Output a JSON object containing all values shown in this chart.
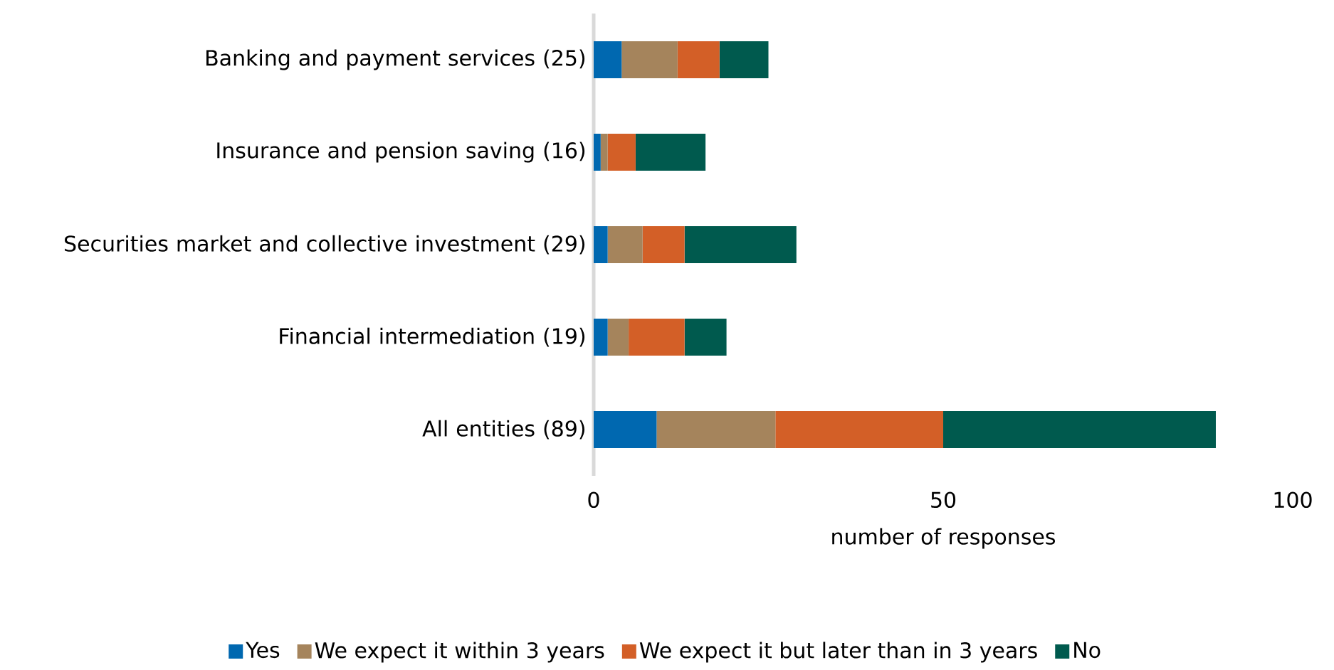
{
  "chart_data": {
    "type": "bar",
    "orientation": "horizontal",
    "stacked": true,
    "categories": [
      "Banking and payment services (25)",
      "Insurance and pension saving (16)",
      "Securities market and collective investment (29)",
      "Financial intermediation (19)",
      "All entities (89)"
    ],
    "series": [
      {
        "name": "Yes",
        "color": "#0068b0",
        "values": [
          4,
          1,
          2,
          2,
          9
        ]
      },
      {
        "name": "We expect it within 3 years",
        "color": "#a5845c",
        "values": [
          8,
          1,
          5,
          3,
          17
        ]
      },
      {
        "name": "We expect it but later than in 3 years",
        "color": "#d35f27",
        "values": [
          6,
          4,
          6,
          8,
          24
        ]
      },
      {
        "name": "No",
        "color": "#005a4e",
        "values": [
          7,
          10,
          16,
          6,
          39
        ]
      }
    ],
    "xlim": [
      0,
      100
    ],
    "xticks": [
      0,
      50,
      100
    ],
    "xlabel": "number of responses",
    "legend": "bottom"
  }
}
